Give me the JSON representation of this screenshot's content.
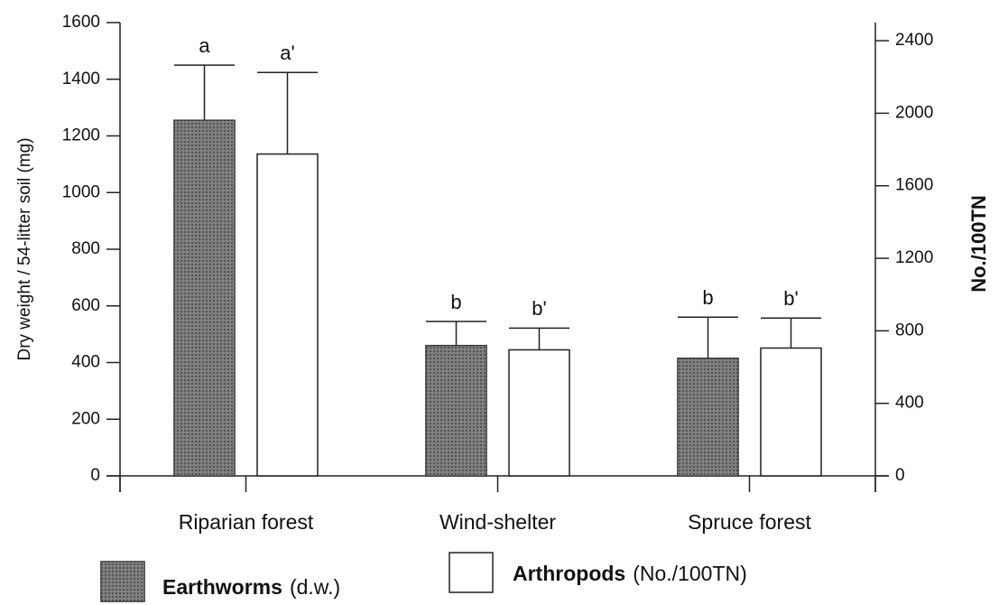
{
  "chart_data": {
    "type": "bar",
    "categories": [
      "Riparian forest",
      "Wind-shelter",
      "Spruce forest"
    ],
    "ylabel": "Dry weight / 54-litter soil (mg)",
    "y2label": "No./100TN",
    "ylim": [
      0,
      1600
    ],
    "yticks": [
      0,
      200,
      400,
      600,
      800,
      1000,
      1200,
      1400,
      1600
    ],
    "y2lim": [
      0,
      2500
    ],
    "y2ticks": [
      0,
      400,
      800,
      1200,
      1600,
      2000,
      2400
    ],
    "series": [
      {
        "name": "Earthworms",
        "name_note": "(d.w.)",
        "color": "#555555",
        "values": [
          1255,
          460,
          415
        ],
        "errors": [
          195,
          85,
          145
        ],
        "labels": [
          "a",
          "b",
          "b"
        ]
      },
      {
        "name": "Arthropods",
        "name_note": "(No./100TN)",
        "color": "#ffffff",
        "axis": "y2",
        "values": [
          1775,
          695,
          705
        ],
        "errors": [
          450,
          120,
          165
        ],
        "labels": [
          "a'",
          "b'",
          "b'"
        ]
      }
    ]
  }
}
